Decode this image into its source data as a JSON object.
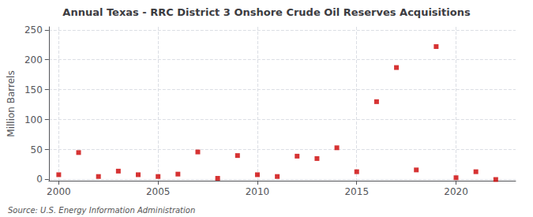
{
  "chart_data": {
    "type": "scatter",
    "title": "Annual Texas - RRC District 3 Onshore Crude Oil Reserves Acquisitions",
    "ylabel": "Million Barrels",
    "annotations": [
      "Source: U.S. Energy Information Administration"
    ],
    "x": [
      2000,
      2001,
      2002,
      2003,
      2004,
      2005,
      2006,
      2007,
      2008,
      2009,
      2010,
      2011,
      2012,
      2013,
      2014,
      2015,
      2016,
      2017,
      2018,
      2019,
      2020,
      2021,
      2022
    ],
    "values": [
      8,
      45,
      5,
      14,
      8,
      5,
      9,
      46,
      2,
      40,
      8,
      5,
      39,
      35,
      53,
      13,
      130,
      187,
      16,
      222,
      3,
      13,
      0
    ],
    "color": "#cc0000",
    "marker": "square",
    "xlim": [
      1999.5,
      2023
    ],
    "xticks": [
      2000,
      2005,
      2010,
      2015,
      2020
    ],
    "ylim": [
      -2,
      255
    ],
    "yticks": [
      0,
      50,
      100,
      150,
      200,
      250
    ],
    "grid": true
  }
}
